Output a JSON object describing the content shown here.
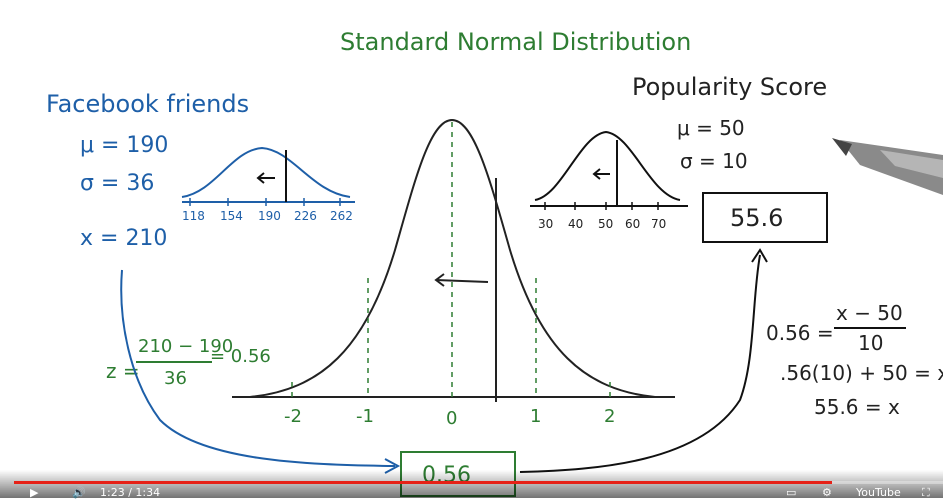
{
  "title": "Standard Normal Distribution",
  "facebook": {
    "heading": "Facebook friends",
    "mu": "μ = 190",
    "sigma": "σ = 36",
    "x": "x = 210",
    "ticks": [
      "118",
      "154",
      "190",
      "226",
      "262"
    ]
  },
  "popularity": {
    "heading": "Popularity Score",
    "mu": "μ = 50",
    "sigma": "σ = 10",
    "ticks": [
      "30",
      "40",
      "50",
      "60",
      "70"
    ],
    "result_box": "55.6"
  },
  "z_formula": {
    "prefix": "z =",
    "numerator": "210 − 190",
    "denominator": "36",
    "result": "= 0.56"
  },
  "standard_axis": {
    "ticks": [
      "-2",
      "-1",
      "0",
      "1",
      "2"
    ]
  },
  "center_box": "0.56",
  "solution": {
    "line1_left": "0.56 =",
    "line1_num": "x − 50",
    "line1_den": "10",
    "line2": ".56(10) + 50 = x",
    "line3": "55.6 = x"
  },
  "player": {
    "time": "1:23 / 1:34",
    "brand": "YouTube",
    "progress": 0.88,
    "accent": "#e62117"
  }
}
